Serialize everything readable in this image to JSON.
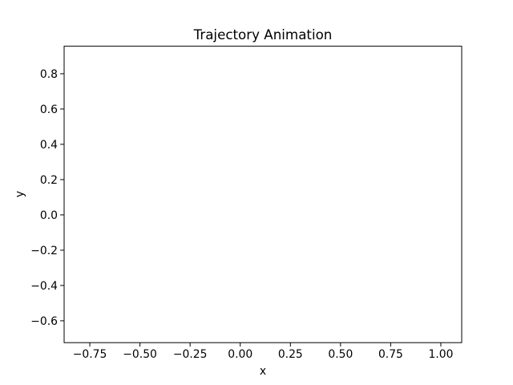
{
  "chart_data": {
    "type": "line",
    "title": "Trajectory Animation",
    "x_label": "x",
    "y_label": "y",
    "xlim": [
      -0.878,
      1.104
    ],
    "xticks": [
      {
        "value": -0.75,
        "label": "−0.75"
      },
      {
        "value": -0.5,
        "label": "−0.50"
      },
      {
        "value": -0.25,
        "label": "−0.25"
      },
      {
        "value": 0,
        "label": "0.00"
      },
      0.25,
      {
        "value": 0.5,
        "label": "0.50"
      },
      0.75,
      {
        "value": 1,
        "label": "1.00"
      }
    ],
    "ylim": [
      -0.724,
      0.956
    ],
    "yticks": [
      {
        "value": -0.6,
        "label": "−0.6"
      },
      {
        "value": -0.4,
        "label": "−0.4"
      },
      {
        "value": -0.2,
        "label": "−0.2"
      },
      {
        "value": 0,
        "label": "0.0"
      },
      0.2,
      0.4,
      0.6,
      0.8
    ],
    "grid": false
  }
}
